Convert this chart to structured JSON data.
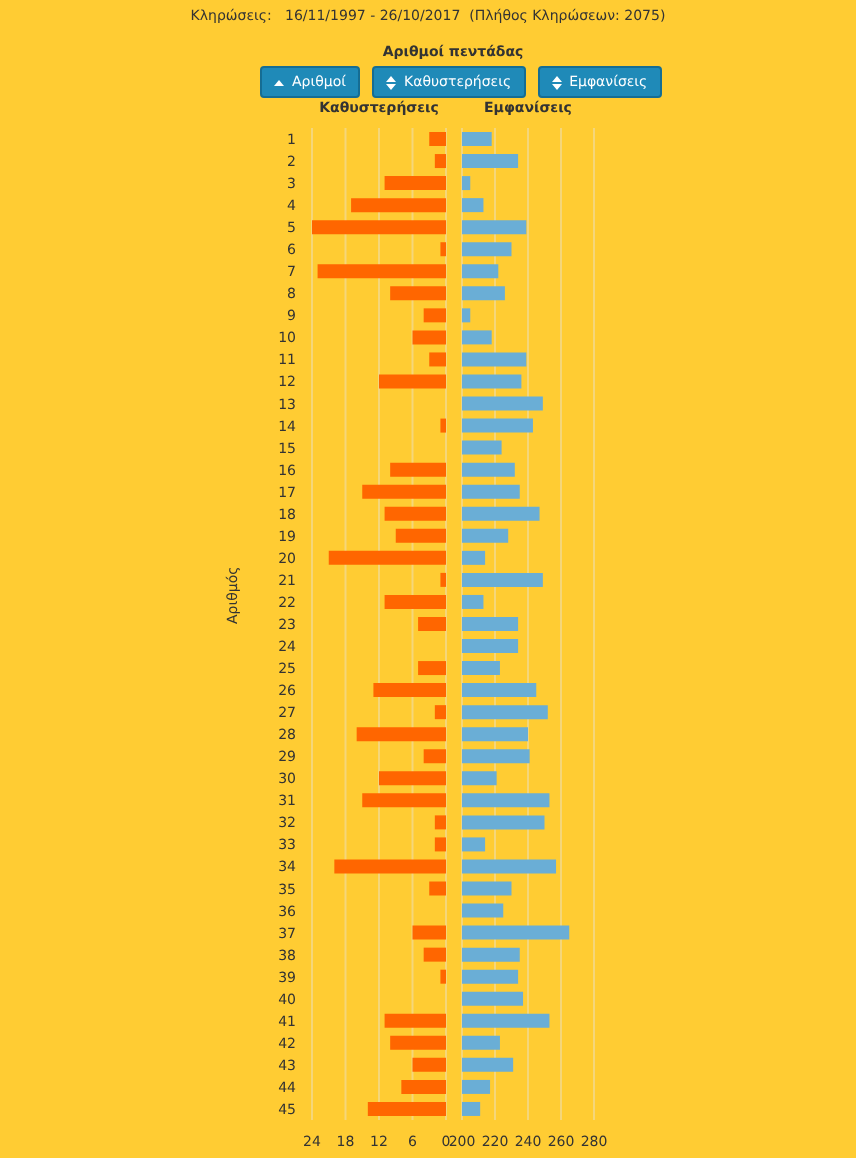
{
  "chart_data": [
    {
      "type": "bar",
      "orientation": "horizontal",
      "title": "Καθυστερήσεις",
      "ylabel": "Αριθμός",
      "annotations": [
        "Κληρώσεις:   16/11/1997 - 26/10/2017  (Πλήθος Κληρώσεων: 2075)",
        "Αριθμοί πεντάδας",
        "Αριθμοί",
        "Καθυστερήσεις",
        "Εμφανίσεις"
      ],
      "categories": [
        "1",
        "2",
        "3",
        "4",
        "5",
        "6",
        "7",
        "8",
        "9",
        "10",
        "11",
        "12",
        "13",
        "14",
        "15",
        "16",
        "17",
        "18",
        "19",
        "20",
        "21",
        "22",
        "23",
        "24",
        "25",
        "26",
        "27",
        "28",
        "29",
        "30",
        "31",
        "32",
        "33",
        "34",
        "35",
        "36",
        "37",
        "38",
        "39",
        "40",
        "41",
        "42",
        "43",
        "44",
        "45"
      ],
      "values": [
        3,
        2,
        11,
        17,
        24,
        1,
        23,
        10,
        4,
        6,
        3,
        12,
        0,
        1,
        0,
        10,
        15,
        11,
        9,
        21,
        1,
        11,
        5,
        0,
        5,
        13,
        2,
        16,
        4,
        12,
        15,
        2,
        2,
        20,
        3,
        0,
        6,
        4,
        1,
        0,
        11,
        10,
        6,
        8,
        14
      ],
      "color": "#ff6600",
      "xlim": [
        24,
        0
      ],
      "xticks": [
        24,
        18,
        12,
        6,
        0
      ],
      "grid": "x"
    },
    {
      "type": "bar",
      "orientation": "horizontal",
      "title": "Εμφανίσεις",
      "tick_labels": "x",
      "categories": [
        "1",
        "2",
        "3",
        "4",
        "5",
        "6",
        "7",
        "8",
        "9",
        "10",
        "11",
        "12",
        "13",
        "14",
        "15",
        "16",
        "17",
        "18",
        "19",
        "20",
        "21",
        "22",
        "23",
        "24",
        "25",
        "26",
        "27",
        "28",
        "29",
        "30",
        "31",
        "32",
        "33",
        "34",
        "35",
        "36",
        "37",
        "38",
        "39",
        "40",
        "41",
        "42",
        "43",
        "44",
        "45"
      ],
      "values": [
        218,
        234,
        205,
        213,
        239,
        230,
        222,
        226,
        205,
        218,
        239,
        236,
        249,
        243,
        224,
        232,
        235,
        247,
        228,
        214,
        249,
        213,
        234,
        234,
        223,
        245,
        252,
        240,
        241,
        221,
        253,
        250,
        214,
        257,
        230,
        225,
        265,
        235,
        234,
        237,
        253,
        223,
        231,
        217,
        211
      ],
      "color": "#6aaed6",
      "xlim": [
        200,
        280
      ],
      "xticks": [
        200,
        220,
        240,
        260,
        280
      ],
      "grid": "x"
    }
  ]
}
